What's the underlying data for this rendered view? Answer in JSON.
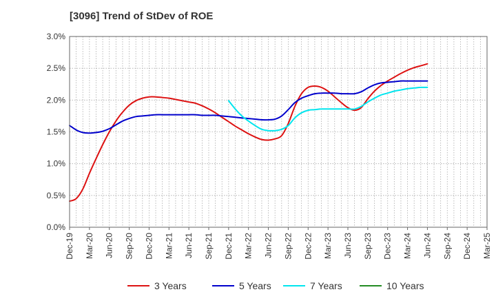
{
  "chart_data": {
    "type": "line",
    "title": "[3096]  Trend of StDev of ROE",
    "xlabel": "",
    "ylabel": "",
    "x_ticks": [
      "Dec-19",
      "Mar-20",
      "Jun-20",
      "Sep-20",
      "Dec-20",
      "Mar-21",
      "Jun-21",
      "Sep-21",
      "Dec-21",
      "Mar-22",
      "Jun-22",
      "Sep-22",
      "Dec-22",
      "Mar-23",
      "Jun-23",
      "Sep-23",
      "Dec-23",
      "Mar-24",
      "Jun-24",
      "Sep-24",
      "Dec-24",
      "Mar-25"
    ],
    "y_ticks": [
      "0.0%",
      "0.5%",
      "1.0%",
      "1.5%",
      "2.0%",
      "2.5%",
      "3.0%"
    ],
    "ylim": [
      0,
      3.0
    ],
    "grid": true,
    "legend_position": "bottom",
    "series": [
      {
        "name": "3 Years",
        "color": "#dd1111",
        "points": [
          [
            "Dec-19",
            0.41
          ],
          [
            "Jan-20",
            0.45
          ],
          [
            "Feb-20",
            0.6
          ],
          [
            "Mar-20",
            0.85
          ],
          [
            "Apr-20",
            1.08
          ],
          [
            "May-20",
            1.3
          ],
          [
            "Jun-20",
            1.5
          ],
          [
            "Jul-20",
            1.67
          ],
          [
            "Aug-20",
            1.81
          ],
          [
            "Sep-20",
            1.92
          ],
          [
            "Oct-20",
            1.99
          ],
          [
            "Nov-20",
            2.03
          ],
          [
            "Dec-20",
            2.05
          ],
          [
            "Jan-21",
            2.05
          ],
          [
            "Feb-21",
            2.04
          ],
          [
            "Mar-21",
            2.03
          ],
          [
            "Apr-21",
            2.01
          ],
          [
            "May-21",
            1.99
          ],
          [
            "Jun-21",
            1.97
          ],
          [
            "Jul-21",
            1.95
          ],
          [
            "Aug-21",
            1.91
          ],
          [
            "Sep-21",
            1.86
          ],
          [
            "Oct-21",
            1.8
          ],
          [
            "Nov-21",
            1.73
          ],
          [
            "Dec-21",
            1.66
          ],
          [
            "Jan-22",
            1.59
          ],
          [
            "Feb-22",
            1.53
          ],
          [
            "Mar-22",
            1.47
          ],
          [
            "Apr-22",
            1.42
          ],
          [
            "May-22",
            1.38
          ],
          [
            "Jun-22",
            1.37
          ],
          [
            "Jul-22",
            1.39
          ],
          [
            "Aug-22",
            1.44
          ],
          [
            "Sep-22",
            1.63
          ],
          [
            "Oct-22",
            1.9
          ],
          [
            "Nov-22",
            2.1
          ],
          [
            "Dec-22",
            2.2
          ],
          [
            "Jan-23",
            2.22
          ],
          [
            "Feb-23",
            2.2
          ],
          [
            "Mar-23",
            2.14
          ],
          [
            "Apr-23",
            2.05
          ],
          [
            "May-23",
            1.96
          ],
          [
            "Jun-23",
            1.88
          ],
          [
            "Jul-23",
            1.84
          ],
          [
            "Aug-23",
            1.88
          ],
          [
            "Sep-23",
            2.02
          ],
          [
            "Oct-23",
            2.14
          ],
          [
            "Nov-23",
            2.23
          ],
          [
            "Dec-23",
            2.3
          ],
          [
            "Jan-24",
            2.36
          ],
          [
            "Feb-24",
            2.42
          ],
          [
            "Mar-24",
            2.47
          ],
          [
            "Apr-24",
            2.51
          ],
          [
            "May-24",
            2.54
          ],
          [
            "Jun-24",
            2.57
          ]
        ]
      },
      {
        "name": "5 Years",
        "color": "#0000cc",
        "points": [
          [
            "Dec-19",
            1.6
          ],
          [
            "Jan-20",
            1.53
          ],
          [
            "Feb-20",
            1.49
          ],
          [
            "Mar-20",
            1.48
          ],
          [
            "Apr-20",
            1.49
          ],
          [
            "May-20",
            1.51
          ],
          [
            "Jun-20",
            1.55
          ],
          [
            "Jul-20",
            1.61
          ],
          [
            "Aug-20",
            1.67
          ],
          [
            "Sep-20",
            1.71
          ],
          [
            "Oct-20",
            1.74
          ],
          [
            "Nov-20",
            1.75
          ],
          [
            "Dec-20",
            1.76
          ],
          [
            "Jan-21",
            1.77
          ],
          [
            "Feb-21",
            1.77
          ],
          [
            "Mar-21",
            1.77
          ],
          [
            "Apr-21",
            1.77
          ],
          [
            "May-21",
            1.77
          ],
          [
            "Jun-21",
            1.77
          ],
          [
            "Jul-21",
            1.77
          ],
          [
            "Aug-21",
            1.76
          ],
          [
            "Sep-21",
            1.76
          ],
          [
            "Oct-21",
            1.76
          ],
          [
            "Nov-21",
            1.75
          ],
          [
            "Dec-21",
            1.74
          ],
          [
            "Jan-22",
            1.73
          ],
          [
            "Feb-22",
            1.72
          ],
          [
            "Mar-22",
            1.71
          ],
          [
            "Apr-22",
            1.7
          ],
          [
            "May-22",
            1.69
          ],
          [
            "Jun-22",
            1.69
          ],
          [
            "Jul-22",
            1.7
          ],
          [
            "Aug-22",
            1.75
          ],
          [
            "Sep-22",
            1.85
          ],
          [
            "Oct-22",
            1.96
          ],
          [
            "Nov-22",
            2.03
          ],
          [
            "Dec-22",
            2.07
          ],
          [
            "Jan-23",
            2.1
          ],
          [
            "Feb-23",
            2.11
          ],
          [
            "Mar-23",
            2.11
          ],
          [
            "Apr-23",
            2.11
          ],
          [
            "May-23",
            2.1
          ],
          [
            "Jun-23",
            2.1
          ],
          [
            "Jul-23",
            2.1
          ],
          [
            "Aug-23",
            2.13
          ],
          [
            "Sep-23",
            2.19
          ],
          [
            "Oct-23",
            2.24
          ],
          [
            "Nov-23",
            2.27
          ],
          [
            "Dec-23",
            2.28
          ],
          [
            "Jan-24",
            2.29
          ],
          [
            "Feb-24",
            2.3
          ],
          [
            "Mar-24",
            2.3
          ],
          [
            "Apr-24",
            2.3
          ],
          [
            "May-24",
            2.3
          ],
          [
            "Jun-24",
            2.3
          ]
        ]
      },
      {
        "name": "7 Years",
        "color": "#00e5ee",
        "points": [
          [
            "Dec-21",
            1.99
          ],
          [
            "Jan-22",
            1.86
          ],
          [
            "Feb-22",
            1.75
          ],
          [
            "Mar-22",
            1.67
          ],
          [
            "Apr-22",
            1.6
          ],
          [
            "May-22",
            1.54
          ],
          [
            "Jun-22",
            1.52
          ],
          [
            "Jul-22",
            1.52
          ],
          [
            "Aug-22",
            1.54
          ],
          [
            "Sep-22",
            1.6
          ],
          [
            "Oct-22",
            1.72
          ],
          [
            "Nov-22",
            1.8
          ],
          [
            "Dec-22",
            1.84
          ],
          [
            "Jan-23",
            1.85
          ],
          [
            "Feb-23",
            1.86
          ],
          [
            "Mar-23",
            1.86
          ],
          [
            "Apr-23",
            1.86
          ],
          [
            "May-23",
            1.86
          ],
          [
            "Jun-23",
            1.86
          ],
          [
            "Jul-23",
            1.86
          ],
          [
            "Aug-23",
            1.9
          ],
          [
            "Sep-23",
            1.97
          ],
          [
            "Oct-23",
            2.03
          ],
          [
            "Nov-23",
            2.08
          ],
          [
            "Dec-23",
            2.11
          ],
          [
            "Jan-24",
            2.14
          ],
          [
            "Feb-24",
            2.16
          ],
          [
            "Mar-24",
            2.18
          ],
          [
            "Apr-24",
            2.19
          ],
          [
            "May-24",
            2.2
          ],
          [
            "Jun-24",
            2.2
          ]
        ]
      },
      {
        "name": "10 Years",
        "color": "#228b22",
        "points": []
      }
    ]
  }
}
